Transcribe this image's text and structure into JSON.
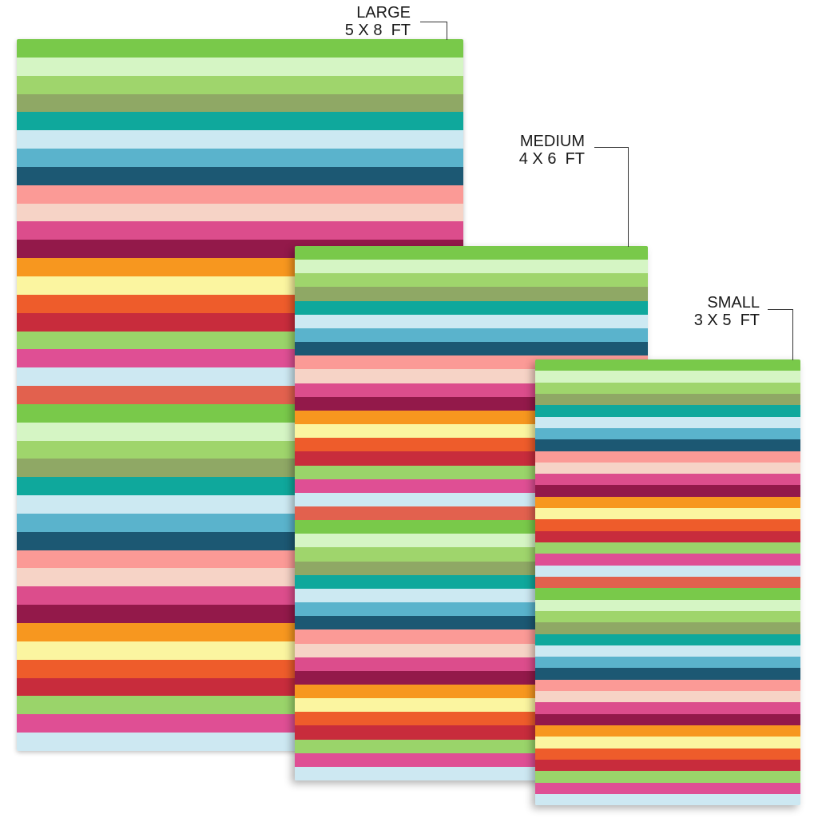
{
  "labels": {
    "large": {
      "name": "LARGE",
      "dims": "5 X 8  FT"
    },
    "medium": {
      "name": "MEDIUM",
      "dims": "4 X 6  FT"
    },
    "small": {
      "name": "SMALL",
      "dims": "3 X 5  FT"
    }
  },
  "stripe_colors": [
    "#79c94a",
    "#d5f5c4",
    "#9fd56c",
    "#8fa865",
    "#0fa89c",
    "#cce9f2",
    "#5ab3cc",
    "#1c5873",
    "#fb9a96",
    "#f6d3c6",
    "#dc4d8c",
    "#93194a",
    "#f7971f",
    "#fbf5a0",
    "#ee5c2b",
    "#c82c3c",
    "#9ad46a",
    "#df4f94",
    "#cde8f2",
    "#e2614e"
  ]
}
